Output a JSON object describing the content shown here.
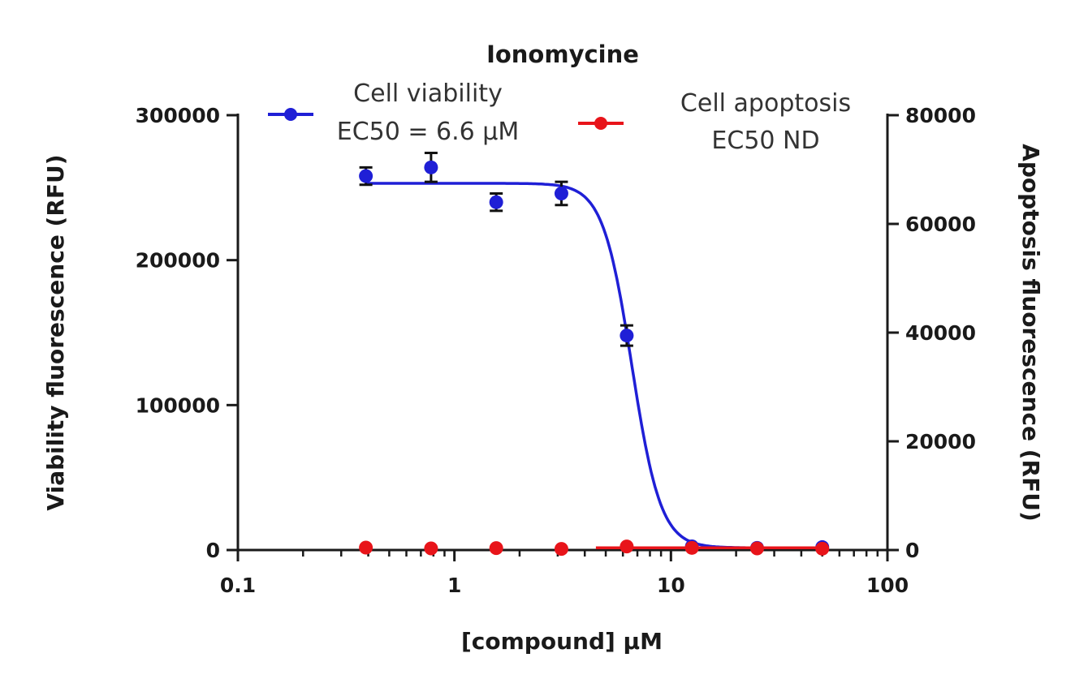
{
  "chart_data": {
    "type": "scatter",
    "title": "Ionomycine",
    "xlabel": "[compound] µM",
    "ylabel": "Viability fluorescence (RFU)",
    "y2label": "Apoptosis fluorescence (RFU)",
    "x_scale": "log",
    "xlim": [
      0.1,
      100
    ],
    "ylim": [
      0,
      300000
    ],
    "y2lim": [
      0,
      80000
    ],
    "x_ticks": [
      {
        "value": 0.1,
        "label": "0.1"
      },
      {
        "value": 1,
        "label": "1"
      },
      {
        "value": 10,
        "label": "10"
      },
      {
        "value": 100,
        "label": "100"
      }
    ],
    "y_ticks": [
      {
        "value": 0,
        "label": "0"
      },
      {
        "value": 100000,
        "label": "100000"
      },
      {
        "value": 200000,
        "label": "200000"
      },
      {
        "value": 300000,
        "label": "300000"
      }
    ],
    "y2_ticks": [
      {
        "value": 0,
        "label": "0"
      },
      {
        "value": 20000,
        "label": "20000"
      },
      {
        "value": 40000,
        "label": "40000"
      },
      {
        "value": 60000,
        "label": "60000"
      },
      {
        "value": 80000,
        "label": "80000"
      }
    ],
    "legend_position": "top",
    "grid": false,
    "series": [
      {
        "name": "Cell viability",
        "annotation": "EC50 = 6.6 µM",
        "axis": "left",
        "color": "#1f1fd6",
        "x": [
          0.39,
          0.78,
          1.56,
          3.12,
          6.25,
          12.5,
          25,
          50
        ],
        "y": [
          258000,
          264000,
          240000,
          246000,
          148000,
          2500,
          1500,
          2000
        ],
        "error": [
          6000,
          10000,
          6000,
          8000,
          7000,
          0,
          0,
          0
        ],
        "fit": {
          "model": "4PL",
          "top": 253000,
          "bottom": 1500,
          "ec50": 6.6,
          "hill": 6.5
        }
      },
      {
        "name": "Cell apoptosis",
        "annotation": "EC50 ND",
        "axis": "right",
        "color": "#e8141a",
        "x": [
          0.39,
          0.78,
          1.56,
          3.12,
          6.25,
          12.5,
          25,
          50
        ],
        "y": [
          450,
          300,
          350,
          200,
          650,
          400,
          300,
          250
        ],
        "fit": {
          "model": "flat",
          "from": 4.5,
          "to": 50,
          "value": 400
        }
      }
    ]
  }
}
